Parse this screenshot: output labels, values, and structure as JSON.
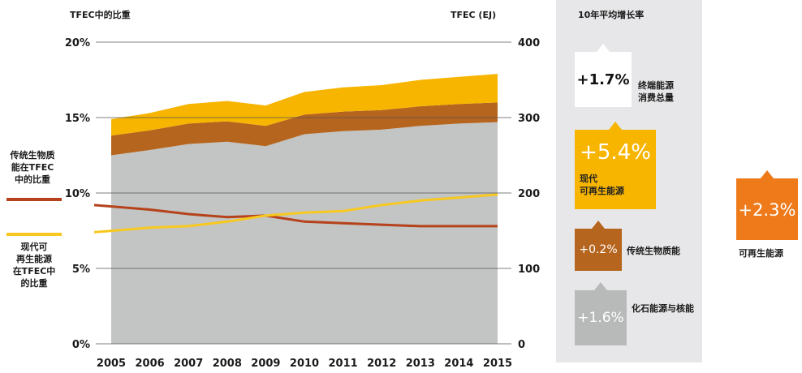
{
  "labels": {
    "left_axis_title": "TFEC中的比重",
    "right_axis_title": "TFEC (EJ)",
    "panel_title": "10年平均增长率",
    "legend_traditional": [
      "传统生物质",
      "能在TFEC",
      "中的比重"
    ],
    "legend_modern": [
      "现代可",
      "再生能源",
      "在TFEC中",
      "的比重"
    ]
  },
  "growth_boxes": [
    {
      "value": "+1.7%",
      "label_lines": [
        "终端能源",
        "消费总量"
      ],
      "color": "#ffffff",
      "text_color": "#111111"
    },
    {
      "value": "+5.4%",
      "label_lines": [
        "现代",
        "可再生能源"
      ],
      "color": "#f7b500",
      "text_color": "#ffffff"
    },
    {
      "value": "+0.2%",
      "label_lines": [
        "传统生物质能"
      ],
      "color": "#b5651d",
      "text_color": "#ffffff"
    },
    {
      "value": "+1.6%",
      "label_lines": [
        "化石能源与核能"
      ],
      "color": "#b8b9b9",
      "text_color": "#ffffff"
    }
  ],
  "renewables_box": {
    "value": "+2.3%",
    "label": "可再生能源",
    "color": "#ee7a1a"
  },
  "colors": {
    "fossil": "#c3c4c4",
    "traditional": "#b5651d",
    "modern": "#f7b500",
    "traditional_line": "#b5421a",
    "modern_line": "#f7c81f"
  },
  "chart_data": {
    "type": "area",
    "title": "",
    "x": [
      2005,
      2006,
      2007,
      2008,
      2009,
      2010,
      2011,
      2012,
      2013,
      2014,
      2015
    ],
    "left_axis": {
      "label": "TFEC中的比重",
      "ticks": [
        "0%",
        "5%",
        "10%",
        "15%",
        "20%"
      ],
      "range": [
        0,
        20
      ]
    },
    "right_axis": {
      "label": "TFEC (EJ)",
      "ticks": [
        "0",
        "100",
        "200",
        "300",
        "400"
      ],
      "range": [
        0,
        400
      ]
    },
    "stacked_area_series_EJ": [
      {
        "name": "化石能源与核能",
        "values": [
          250,
          257,
          265,
          268,
          262,
          278,
          282,
          284,
          289,
          292,
          294
        ]
      },
      {
        "name": "传统生物质能",
        "values": [
          26,
          26,
          27,
          27,
          27,
          26,
          26,
          26,
          26,
          26,
          26
        ]
      },
      {
        "name": "现代可再生能源",
        "values": [
          22,
          23,
          26,
          27,
          27,
          30,
          32,
          33,
          35,
          36,
          38
        ]
      }
    ],
    "line_series_percent": [
      {
        "name": "传统生物质能在TFEC中的比重",
        "axis": "left",
        "values": [
          9.2,
          8.9,
          8.6,
          8.4,
          8.5,
          8.1,
          8.0,
          7.9,
          7.8,
          7.8,
          7.8
        ]
      },
      {
        "name": "现代可再生能源在TFEC中的比重",
        "axis": "left",
        "values": [
          7.4,
          7.7,
          7.8,
          8.1,
          8.5,
          8.7,
          8.8,
          9.2,
          9.5,
          9.7,
          9.9
        ]
      }
    ]
  }
}
